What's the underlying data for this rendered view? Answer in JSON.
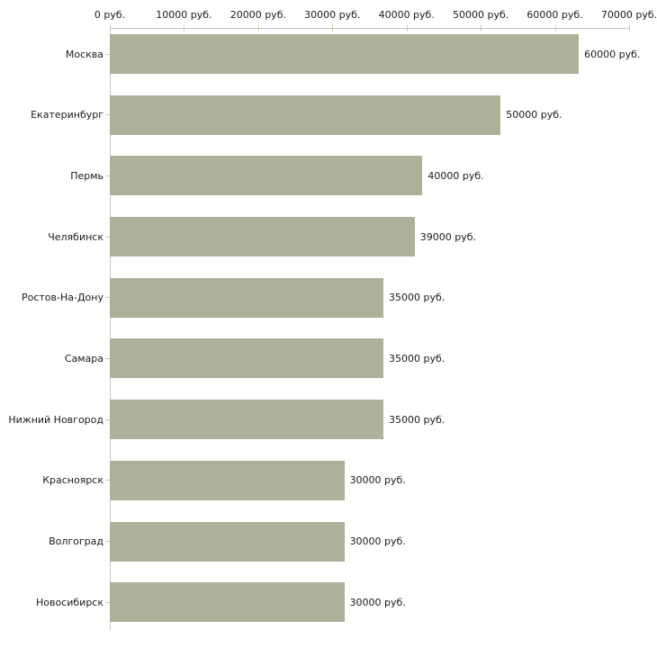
{
  "chart_data": {
    "type": "bar",
    "orientation": "horizontal",
    "unit": "руб.",
    "categories": [
      "Москва",
      "Екатеринбург",
      "Пермь",
      "Челябинск",
      "Ростов-На-Дону",
      "Самара",
      "Нижний Новгород",
      "Красноярск",
      "Волгоград",
      "Новосибирск"
    ],
    "values": [
      60000,
      50000,
      40000,
      39000,
      35000,
      35000,
      35000,
      30000,
      30000,
      30000
    ],
    "value_labels": [
      "60000 руб.",
      "50000 руб.",
      "40000 руб.",
      "39000 руб.",
      "35000 руб.",
      "35000 руб.",
      "35000 руб.",
      "30000 руб.",
      "30000 руб.",
      "30000 руб."
    ],
    "x_ticks": [
      {
        "value": 0,
        "label": "0 руб."
      },
      {
        "value": 10000,
        "label": "10000 руб."
      },
      {
        "value": 20000,
        "label": "20000 руб."
      },
      {
        "value": 30000,
        "label": "30000 руб."
      },
      {
        "value": 40000,
        "label": "40000 руб."
      },
      {
        "value": 50000,
        "label": "50000 руб."
      },
      {
        "value": 60000,
        "label": "60000 руб."
      },
      {
        "value": 70000,
        "label": "70000 руб."
      }
    ],
    "xlim": [
      0,
      70000
    ],
    "grid": false,
    "legend": false,
    "colors": {
      "bar": "#abb299",
      "axis": "#c6c6c6",
      "tick_mark": "#cfcaa6",
      "text": "#1a1a1a",
      "background": "#ffffff"
    }
  }
}
